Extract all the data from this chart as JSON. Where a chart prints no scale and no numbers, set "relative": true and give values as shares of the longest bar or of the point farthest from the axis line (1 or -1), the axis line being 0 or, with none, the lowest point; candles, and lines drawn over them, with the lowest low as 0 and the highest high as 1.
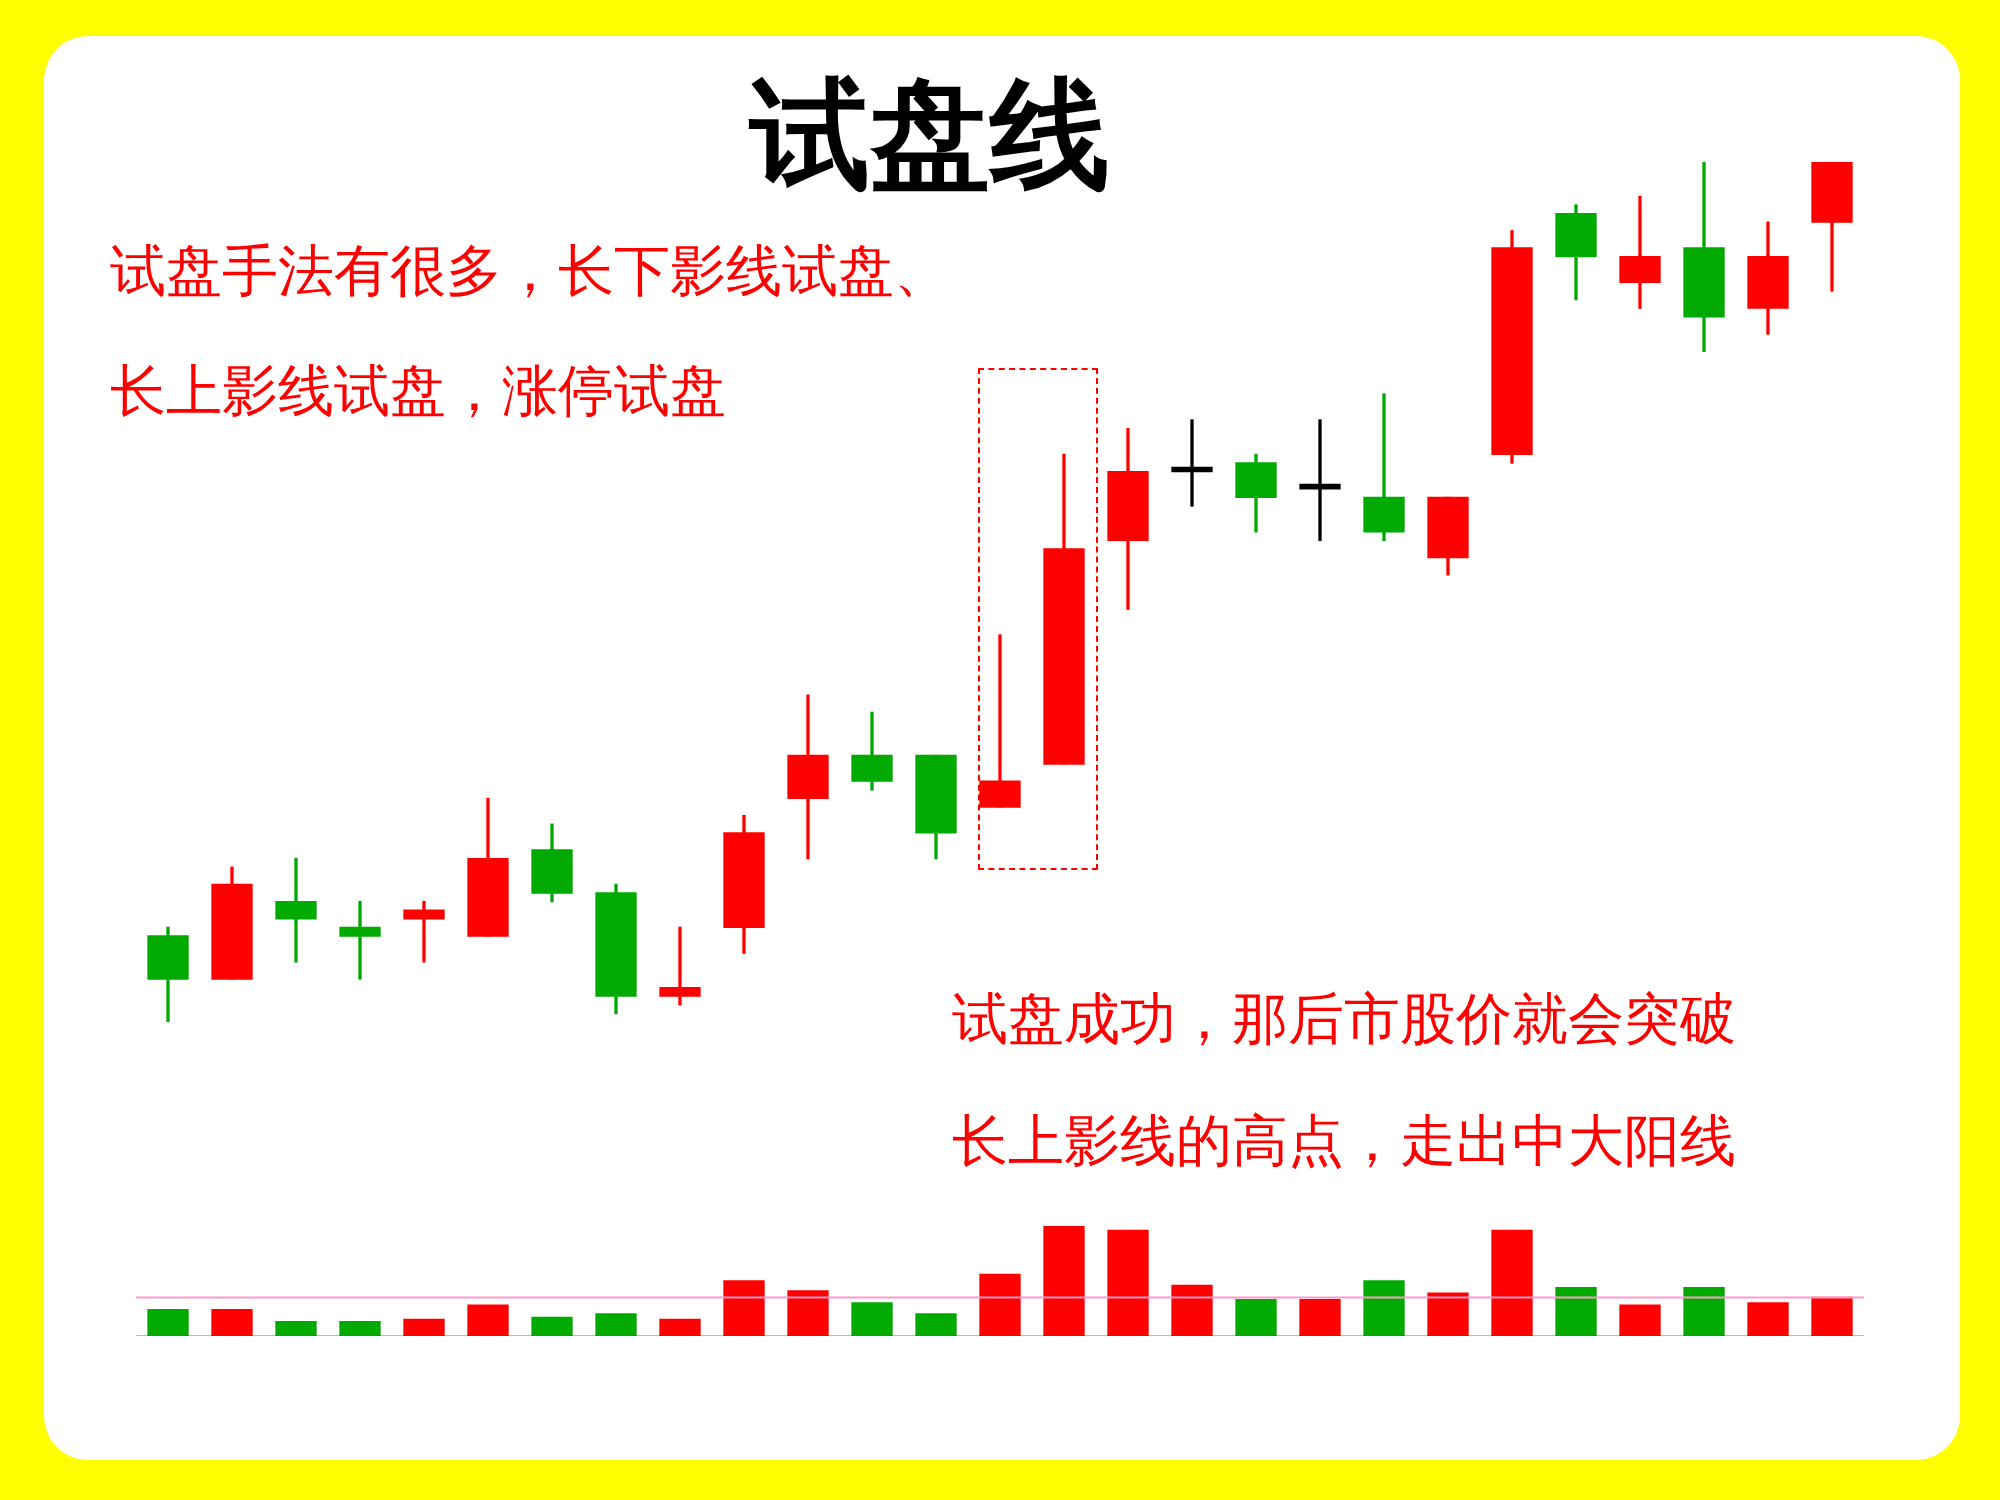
{
  "chart_data": [
    {
      "type": "candlestick",
      "title": "试盘线",
      "relative": true,
      "categories": [
        null,
        null,
        null,
        null,
        null,
        null,
        null,
        null,
        null,
        null,
        null,
        null,
        null,
        null,
        null,
        null,
        null,
        null,
        null,
        null,
        null,
        null,
        null,
        null,
        null,
        null,
        null
      ],
      "ohlc": [
        [
          0.1,
          0.11,
          0,
          0.05
        ],
        [
          0.05,
          0.18,
          0.05,
          0.16
        ],
        [
          0.14,
          0.19,
          0.07,
          0.12
        ],
        [
          0.11,
          0.14,
          0.05,
          0.1
        ],
        [
          0.12,
          0.14,
          0.07,
          0.13
        ],
        [
          0.1,
          0.26,
          0.1,
          0.19
        ],
        [
          0.2,
          0.23,
          0.14,
          0.15
        ],
        [
          0.15,
          0.16,
          0.01,
          0.03
        ],
        [
          0.03,
          0.11,
          0.02,
          0.04
        ],
        [
          0.11,
          0.24,
          0.08,
          0.22
        ],
        [
          0.26,
          0.38,
          0.19,
          0.31
        ],
        [
          0.31,
          0.36,
          0.27,
          0.28
        ],
        [
          0.31,
          0.31,
          0.19,
          0.22
        ],
        [
          0.25,
          0.45,
          0.25,
          0.28
        ],
        [
          0.3,
          0.66,
          0.3,
          0.55
        ],
        [
          0.56,
          0.69,
          0.48,
          0.64
        ],
        [
          0.645,
          0.7,
          0.6,
          0.64
        ],
        [
          0.65,
          0.66,
          0.57,
          0.61
        ],
        [
          0.625,
          0.7,
          0.56,
          0.62
        ],
        [
          0.61,
          0.73,
          0.56,
          0.57
        ],
        [
          0.54,
          0.61,
          0.52,
          0.61
        ],
        [
          0.66,
          0.92,
          0.65,
          0.9
        ],
        [
          0.94,
          0.95,
          0.84,
          0.89
        ],
        [
          0.86,
          0.96,
          0.83,
          0.89
        ],
        [
          0.9,
          1.0,
          0.78,
          0.82
        ],
        [
          0.83,
          0.93,
          0.8,
          0.89
        ],
        [
          0.93,
          1.0,
          0.85,
          1.0
        ]
      ],
      "colors": [
        "#00aa00",
        "#ff0000",
        "#00aa00",
        "#00aa00",
        "#ff0000",
        "#ff0000",
        "#00aa00",
        "#00aa00",
        "#ff0000",
        "#ff0000",
        "#ff0000",
        "#00aa00",
        "#00aa00",
        "#ff0000",
        "#ff0000",
        "#ff0000",
        "#000000",
        "#00aa00",
        "#000000",
        "#00aa00",
        "#ff0000",
        "#ff0000",
        "#00aa00",
        "#ff0000",
        "#00aa00",
        "#ff0000",
        "#ff0000"
      ],
      "annotations": [
        "试盘手法有很多，长下影线试盘、",
        "长上影线试盘，涨停试盘",
        "试盘成功，那后市股价就会突破",
        "长上影线的高点，走出中大阳线"
      ]
    },
    {
      "type": "bar",
      "relative": true,
      "categories": [
        null,
        null,
        null,
        null,
        null,
        null,
        null,
        null,
        null,
        null,
        null,
        null,
        null,
        null,
        null,
        null,
        null,
        null,
        null,
        null,
        null,
        null,
        null,
        null,
        null,
        null,
        null
      ],
      "values": [
        0.24,
        0.24,
        0.13,
        0.13,
        0.15,
        0.28,
        0.17,
        0.2,
        0.15,
        0.5,
        0.41,
        0.3,
        0.2,
        0.56,
        1.0,
        0.96,
        0.46,
        0.33,
        0.33,
        0.5,
        0.39,
        0.96,
        0.44,
        0.28,
        0.44,
        0.3,
        0.35
      ],
      "colors": [
        "#00aa00",
        "#ff0000",
        "#00aa00",
        "#00aa00",
        "#ff0000",
        "#ff0000",
        "#00aa00",
        "#00aa00",
        "#ff0000",
        "#ff0000",
        "#ff0000",
        "#00aa00",
        "#00aa00",
        "#ff0000",
        "#ff0000",
        "#ff0000",
        "#ff0000",
        "#00aa00",
        "#ff0000",
        "#00aa00",
        "#ff0000",
        "#ff0000",
        "#00aa00",
        "#ff0000",
        "#00aa00",
        "#ff0000",
        "#ff0000"
      ],
      "ref_lines": [
        {
          "axis": "y",
          "value": 0.35,
          "color": "#ff99cc"
        }
      ]
    }
  ]
}
